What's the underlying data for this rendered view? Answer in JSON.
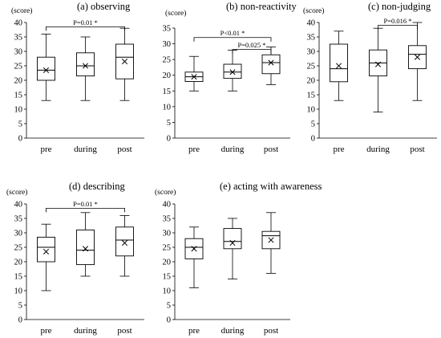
{
  "figure": {
    "yunit": "(score)",
    "categories": [
      "pre",
      "during",
      "post"
    ]
  },
  "chart_data": [
    {
      "type": "boxplot",
      "title": "(a) observing",
      "ylabel": "(score)",
      "categories": [
        "pre",
        "during",
        "post"
      ],
      "ylim": [
        0,
        40
      ],
      "yticks": [
        0,
        5,
        10,
        15,
        20,
        25,
        30,
        35,
        40
      ],
      "boxes": [
        {
          "min": 13,
          "q1": 20,
          "median": 23.5,
          "q3": 28,
          "max": 36,
          "mean": 23.5
        },
        {
          "min": 13,
          "q1": 21.5,
          "median": 25,
          "q3": 29.5,
          "max": 35,
          "mean": 25
        },
        {
          "min": 13,
          "q1": 20.5,
          "median": 28,
          "q3": 32.5,
          "max": 38,
          "mean": 26.5
        }
      ],
      "annotations": [
        {
          "from": 0,
          "to": 2,
          "text": "P=0.01 *",
          "y": 38.5
        }
      ]
    },
    {
      "type": "boxplot",
      "title": "(b)  non-reactivity",
      "ylabel": "(score)",
      "categories": [
        "pre",
        "during",
        "post"
      ],
      "ylim": [
        0,
        35
      ],
      "yticks": [
        0,
        5,
        10,
        15,
        20,
        25,
        30,
        35
      ],
      "boxes": [
        {
          "min": 15,
          "q1": 18,
          "median": 19.5,
          "q3": 21,
          "max": 26,
          "mean": 19.5
        },
        {
          "min": 15,
          "q1": 19,
          "median": 21,
          "q3": 23.5,
          "max": 28,
          "mean": 21
        },
        {
          "min": 17,
          "q1": 20.5,
          "median": 24,
          "q3": 26.5,
          "max": 29,
          "mean": 24
        }
      ],
      "annotations": [
        {
          "from": 0,
          "to": 2,
          "text": "P<0.01 *",
          "y": 32
        },
        {
          "from": 1,
          "to": 2,
          "text": "P=0.025 *",
          "y": 28.2
        }
      ]
    },
    {
      "type": "boxplot",
      "title": "(c)  non-judging",
      "ylabel": "(score)",
      "categories": [
        "pre",
        "during",
        "post"
      ],
      "ylim": [
        0,
        40
      ],
      "yticks": [
        0,
        5,
        10,
        15,
        20,
        25,
        30,
        35,
        40
      ],
      "boxes": [
        {
          "min": 13,
          "q1": 19.5,
          "median": 24,
          "q3": 32.5,
          "max": 37,
          "mean": 25
        },
        {
          "min": 9,
          "q1": 21.5,
          "median": 26,
          "q3": 30.5,
          "max": 38,
          "mean": 25.5
        },
        {
          "min": 13,
          "q1": 24,
          "median": 29,
          "q3": 32,
          "max": 40,
          "mean": 28
        }
      ],
      "annotations": [
        {
          "from": 1,
          "to": 2,
          "text": "P=0.016 *",
          "y": 39
        }
      ]
    },
    {
      "type": "boxplot",
      "title": "(d) describing",
      "ylabel": "(score)",
      "categories": [
        "pre",
        "during",
        "post"
      ],
      "ylim": [
        0,
        40
      ],
      "yticks": [
        0,
        5,
        10,
        15,
        20,
        25,
        30,
        35,
        40
      ],
      "boxes": [
        {
          "min": 10,
          "q1": 20,
          "median": 25,
          "q3": 28.5,
          "max": 33,
          "mean": 23.5
        },
        {
          "min": 15,
          "q1": 19,
          "median": 24,
          "q3": 31,
          "max": 37,
          "mean": 24.5
        },
        {
          "min": 15,
          "q1": 22,
          "median": 27.5,
          "q3": 32,
          "max": 36,
          "mean": 26.5
        }
      ],
      "annotations": [
        {
          "from": 0,
          "to": 2,
          "text": "P=0.01 *",
          "y": 38.5
        }
      ]
    },
    {
      "type": "boxplot",
      "title": "(e) acting with awareness",
      "ylabel": "(score)",
      "categories": [
        "pre",
        "during",
        "post"
      ],
      "ylim": [
        0,
        40
      ],
      "yticks": [
        0,
        5,
        10,
        15,
        20,
        25,
        30,
        35,
        40
      ],
      "boxes": [
        {
          "min": 11,
          "q1": 21,
          "median": 25,
          "q3": 28,
          "max": 32,
          "mean": 24.5
        },
        {
          "min": 14,
          "q1": 24.5,
          "median": 27,
          "q3": 31.5,
          "max": 35,
          "mean": 26.5
        },
        {
          "min": 16,
          "q1": 24.5,
          "median": 29,
          "q3": 30.5,
          "max": 37,
          "mean": 27.5
        }
      ],
      "annotations": []
    }
  ]
}
